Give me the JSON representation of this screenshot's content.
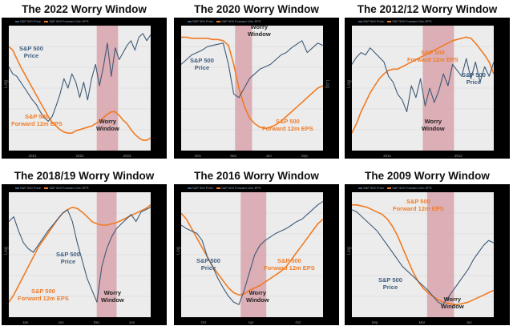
{
  "colors": {
    "price": "#3e5a78",
    "eps": "#f07b23",
    "worry_band": "#d79aa4",
    "plot_bg": "#ececec",
    "frame": "#000000"
  },
  "chart_data": [
    {
      "type": "line",
      "title": "The 2022 Worry Window",
      "ylabel": "Log",
      "price_label": "S&P 500 Price",
      "eps_label": "S&P 500 Forward 12m EPS",
      "worry_label": "Worry Window",
      "x_ticks": [
        "2021",
        "2022",
        "2023"
      ],
      "worry_window": [
        0.62,
        0.77
      ],
      "series": [
        {
          "name": "S&P 500 Price",
          "values": [
            0.68,
            0.62,
            0.6,
            0.55,
            0.5,
            0.45,
            0.4,
            0.36,
            0.3,
            0.25,
            0.22,
            0.26,
            0.35,
            0.45,
            0.58,
            0.5,
            0.62,
            0.55,
            0.42,
            0.55,
            0.4,
            0.58,
            0.7,
            0.52,
            0.68,
            0.88,
            0.6,
            0.84,
            0.74,
            0.8,
            0.86,
            0.9,
            0.82,
            0.93,
            0.96,
            0.9,
            0.95
          ]
        },
        {
          "name": "S&P 500 Forward 12m EPS",
          "values": [
            0.85,
            0.82,
            0.75,
            0.68,
            0.62,
            0.56,
            0.5,
            0.44,
            0.38,
            0.32,
            0.26,
            0.21,
            0.18,
            0.15,
            0.13,
            0.12,
            0.12,
            0.14,
            0.15,
            0.16,
            0.17,
            0.18,
            0.2,
            0.22,
            0.25,
            0.28,
            0.3,
            0.3,
            0.27,
            0.23,
            0.2,
            0.15,
            0.11,
            0.08,
            0.06,
            0.06,
            0.08
          ]
        }
      ]
    },
    {
      "type": "line",
      "title": "The 2020 Worry Window",
      "ylabel": "Log",
      "price_label": "S&P 500 Price",
      "eps_label": "S&P 500 Forward 12m EPS",
      "worry_label": "Worry Window",
      "x_ticks": [
        "Dec",
        "Mar",
        "Jun",
        "Sep"
      ],
      "worry_window": [
        0.38,
        0.5
      ],
      "series": [
        {
          "name": "S&P 500 Price",
          "values": [
            0.7,
            0.74,
            0.78,
            0.8,
            0.82,
            0.85,
            0.86,
            0.87,
            0.88,
            0.7,
            0.45,
            0.42,
            0.5,
            0.58,
            0.62,
            0.66,
            0.68,
            0.7,
            0.74,
            0.78,
            0.8,
            0.84,
            0.87,
            0.9,
            0.8,
            0.84,
            0.88,
            0.86
          ]
        },
        {
          "name": "S&P 500 Forward 12m EPS",
          "values": [
            0.93,
            0.93,
            0.92,
            0.92,
            0.92,
            0.92,
            0.91,
            0.91,
            0.9,
            0.86,
            0.7,
            0.5,
            0.35,
            0.25,
            0.2,
            0.17,
            0.16,
            0.17,
            0.19,
            0.22,
            0.26,
            0.3,
            0.34,
            0.38,
            0.42,
            0.46,
            0.5,
            0.52
          ]
        }
      ]
    },
    {
      "type": "line",
      "title": "The 2012/12 Worry Window",
      "ylabel": "Log",
      "price_label": "S&P 500 Price",
      "eps_label": "S&P 500 Forward 12m EPS",
      "worry_label": "Worry Window",
      "x_ticks": [
        "2011",
        "2012"
      ],
      "worry_window": [
        0.5,
        0.72
      ],
      "series": [
        {
          "name": "S&P 500 Price",
          "values": [
            0.7,
            0.76,
            0.8,
            0.78,
            0.84,
            0.8,
            0.76,
            0.72,
            0.6,
            0.55,
            0.45,
            0.4,
            0.3,
            0.52,
            0.42,
            0.58,
            0.35,
            0.5,
            0.38,
            0.48,
            0.62,
            0.52,
            0.7,
            0.65,
            0.6,
            0.75,
            0.58,
            0.72,
            0.55,
            0.68,
            0.6,
            0.72
          ]
        },
        {
          "name": "S&P 500 Forward 12m EPS",
          "values": [
            0.12,
            0.2,
            0.3,
            0.38,
            0.46,
            0.52,
            0.58,
            0.62,
            0.65,
            0.66,
            0.66,
            0.68,
            0.7,
            0.72,
            0.74,
            0.76,
            0.78,
            0.8,
            0.82,
            0.84,
            0.86,
            0.88,
            0.9,
            0.91,
            0.92,
            0.93,
            0.92,
            0.88,
            0.83,
            0.78,
            0.72,
            0.62
          ]
        }
      ]
    },
    {
      "type": "line",
      "title": "The 2018/19 Worry Window",
      "ylabel": "Log",
      "price_label": "S&P 500 Price",
      "eps_label": "S&P 500 Forward 12m EPS",
      "worry_label": "Worry Window",
      "x_ticks": [
        "Jan",
        "Jun",
        "Dec",
        "Jun"
      ],
      "worry_window": [
        0.62,
        0.76
      ],
      "series": [
        {
          "name": "S&P 500 Price",
          "values": [
            0.78,
            0.82,
            0.7,
            0.6,
            0.55,
            0.52,
            0.58,
            0.64,
            0.7,
            0.75,
            0.8,
            0.85,
            0.88,
            0.78,
            0.6,
            0.45,
            0.3,
            0.2,
            0.1,
            0.4,
            0.55,
            0.65,
            0.72,
            0.76,
            0.8,
            0.84,
            0.78,
            0.86,
            0.88,
            0.9
          ]
        },
        {
          "name": "S&P 500 Forward 12m EPS",
          "values": [
            0.1,
            0.16,
            0.24,
            0.32,
            0.4,
            0.48,
            0.56,
            0.62,
            0.68,
            0.74,
            0.8,
            0.85,
            0.88,
            0.9,
            0.89,
            0.86,
            0.82,
            0.78,
            0.76,
            0.75,
            0.75,
            0.76,
            0.77,
            0.79,
            0.81,
            0.83,
            0.85,
            0.87,
            0.89,
            0.92
          ]
        }
      ]
    },
    {
      "type": "line",
      "title": "The 2016 Worry Window",
      "ylabel": "Log",
      "price_label": "S&P 500 Price",
      "eps_label": "S&P 500 Forward 12m EPS",
      "worry_label": "Worry Window",
      "x_ticks": [
        "Oct",
        "Apr",
        "Oct"
      ],
      "worry_window": [
        0.42,
        0.6
      ],
      "series": [
        {
          "name": "S&P 500 Price",
          "values": [
            0.75,
            0.72,
            0.7,
            0.68,
            0.62,
            0.48,
            0.4,
            0.3,
            0.22,
            0.15,
            0.1,
            0.08,
            0.2,
            0.35,
            0.5,
            0.58,
            0.62,
            0.65,
            0.68,
            0.7,
            0.72,
            0.75,
            0.78,
            0.8,
            0.84,
            0.88,
            0.92,
            0.95
          ]
        },
        {
          "name": "S&P 500 Forward 12m EPS",
          "values": [
            0.85,
            0.8,
            0.72,
            0.64,
            0.56,
            0.48,
            0.4,
            0.34,
            0.28,
            0.22,
            0.18,
            0.16,
            0.17,
            0.2,
            0.22,
            0.24,
            0.27,
            0.3,
            0.33,
            0.36,
            0.4,
            0.46,
            0.52,
            0.58,
            0.64,
            0.7,
            0.76,
            0.8
          ]
        }
      ]
    },
    {
      "type": "line",
      "title": "The 2009 Worry Window",
      "ylabel": "Log",
      "price_label": "S&P 500 Price",
      "eps_label": "S&P 500 Forward 12m EPS",
      "worry_label": "Worry Window",
      "x_ticks": [
        "Sep",
        "Mar",
        "Jun"
      ],
      "worry_window": [
        0.53,
        0.72
      ],
      "series": [
        {
          "name": "S&P 500 Price",
          "values": [
            0.88,
            0.86,
            0.82,
            0.78,
            0.74,
            0.7,
            0.64,
            0.58,
            0.52,
            0.46,
            0.4,
            0.36,
            0.32,
            0.28,
            0.24,
            0.2,
            0.15,
            0.1,
            0.08,
            0.14,
            0.2,
            0.26,
            0.32,
            0.38,
            0.46,
            0.52,
            0.58,
            0.62,
            0.6
          ]
        },
        {
          "name": "S&P 500 Forward 12m EPS",
          "values": [
            0.92,
            0.92,
            0.91,
            0.9,
            0.88,
            0.86,
            0.84,
            0.8,
            0.74,
            0.66,
            0.56,
            0.46,
            0.36,
            0.28,
            0.22,
            0.18,
            0.15,
            0.12,
            0.1,
            0.09,
            0.08,
            0.08,
            0.09,
            0.1,
            0.12,
            0.14,
            0.16,
            0.18,
            0.2
          ]
        }
      ]
    }
  ]
}
